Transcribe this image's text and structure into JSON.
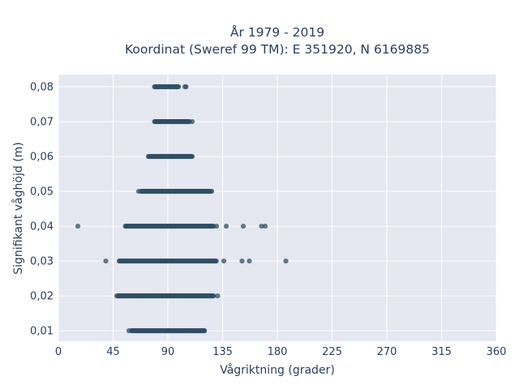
{
  "chart_data": {
    "type": "scatter",
    "title_lines": [
      "År 1979 - 2019",
      "Koordinat (Sweref 99 TM): E 351920, N 6169885"
    ],
    "xlabel": "Vågriktning (grader)",
    "ylabel": "Signifikant våghöjd (m)",
    "xlim": [
      0,
      360
    ],
    "ylim": [
      0.007,
      0.0835
    ],
    "x_ticks": [
      0,
      45,
      90,
      135,
      180,
      225,
      270,
      315,
      360
    ],
    "x_tick_labels": [
      "0",
      "45",
      "90",
      "135",
      "180",
      "225",
      "270",
      "315",
      "360"
    ],
    "y_ticks": [
      0.01,
      0.02,
      0.03,
      0.04,
      0.05,
      0.06,
      0.07,
      0.08
    ],
    "y_tick_labels": [
      "0,01",
      "0,02",
      "0,03",
      "0,04",
      "0,05",
      "0,06",
      "0,07",
      "0,08"
    ],
    "grid": true,
    "marker_color": "#2f4f66",
    "plot_background": "#e5e8f0",
    "dense_ranges": [
      {
        "y": 0.08,
        "x_min": 79,
        "x_max": 99
      },
      {
        "y": 0.07,
        "x_min": 79,
        "x_max": 108
      },
      {
        "y": 0.06,
        "x_min": 74,
        "x_max": 110
      },
      {
        "y": 0.05,
        "x_min": 68,
        "x_max": 125
      },
      {
        "y": 0.04,
        "x_min": 55,
        "x_max": 128
      },
      {
        "y": 0.03,
        "x_min": 50,
        "x_max": 130
      },
      {
        "y": 0.02,
        "x_min": 49,
        "x_max": 128
      },
      {
        "y": 0.01,
        "x_min": 60,
        "x_max": 120
      }
    ],
    "outliers": [
      {
        "x": 104,
        "y": 0.08
      },
      {
        "x": 105,
        "y": 0.08
      },
      {
        "x": 110,
        "y": 0.07
      },
      {
        "x": 66,
        "y": 0.05
      },
      {
        "x": 126,
        "y": 0.05
      },
      {
        "x": 16,
        "y": 0.04
      },
      {
        "x": 130,
        "y": 0.04
      },
      {
        "x": 138,
        "y": 0.04
      },
      {
        "x": 152,
        "y": 0.04
      },
      {
        "x": 167,
        "y": 0.04
      },
      {
        "x": 170,
        "y": 0.04
      },
      {
        "x": 39,
        "y": 0.03
      },
      {
        "x": 136,
        "y": 0.03
      },
      {
        "x": 151,
        "y": 0.03
      },
      {
        "x": 157,
        "y": 0.03
      },
      {
        "x": 187,
        "y": 0.03
      },
      {
        "x": 48,
        "y": 0.02
      },
      {
        "x": 131,
        "y": 0.02
      },
      {
        "x": 58,
        "y": 0.01
      },
      {
        "x": 120,
        "y": 0.01
      }
    ]
  }
}
